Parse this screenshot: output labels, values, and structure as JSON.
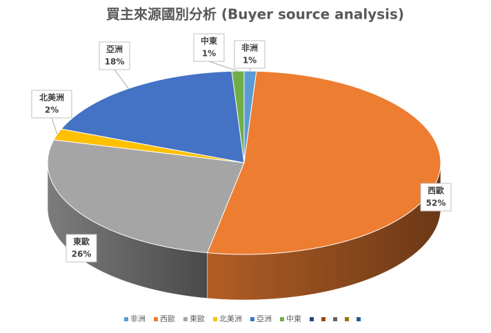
{
  "chart_data": {
    "type": "pie3d",
    "title": "買主來源國別分析 (Buyer source analysis)",
    "categories": [
      "非洲",
      "西歐",
      "東歐",
      "北美洲",
      "亞洲",
      "中東",
      null,
      null,
      null,
      null,
      null
    ],
    "values": [
      1,
      52,
      26,
      2,
      18,
      1,
      null,
      null,
      null,
      null,
      null
    ],
    "value_labels": [
      "1%",
      "52%",
      "26%",
      "2%",
      "18%",
      "1%",
      null,
      null,
      null,
      null,
      null
    ],
    "colors": [
      "#5b9bd5",
      "#ed7d31",
      "#a5a5a5",
      "#ffc000",
      "#4472c4",
      "#70ad47",
      "#264478",
      "#9e480e",
      "#636363",
      "#997300",
      "#255e91"
    ]
  }
}
